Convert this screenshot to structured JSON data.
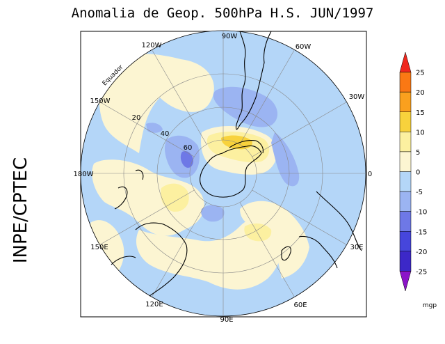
{
  "title": "Anomalia de Geop. 500hPa H.S. JUN/1997",
  "side_label": "INPE/CPTEC",
  "longitude_labels": [
    "90W",
    "60W",
    "30W",
    "0",
    "30E",
    "60E",
    "90E",
    "120E",
    "150E",
    "180W",
    "150W",
    "120W"
  ],
  "latitude_labels": [
    "20",
    "40",
    "60"
  ],
  "equator_label": "Equador",
  "colorbar": {
    "unit": "mgp",
    "ticks": [
      "25",
      "20",
      "15",
      "10",
      "5",
      "0",
      "-5",
      "-10",
      "-15",
      "-20",
      "-25"
    ],
    "colors": [
      "#f0281e",
      "#fa7814",
      "#faa01e",
      "#f8d23c",
      "#fcf0a0",
      "#fcf5d2",
      "#b4d6f8",
      "#9bb4f2",
      "#6e78e6",
      "#4646dc",
      "#3c28c8",
      "#8c14c8"
    ]
  },
  "palette": {
    "neg5": "#b4d6f8",
    "neg10": "#9bb4f2",
    "neg15": "#6e78e6",
    "zero": "#fcf5d2",
    "pos5": "#fcf0a0",
    "pos10": "#f8d23c",
    "land": "#000000"
  }
}
